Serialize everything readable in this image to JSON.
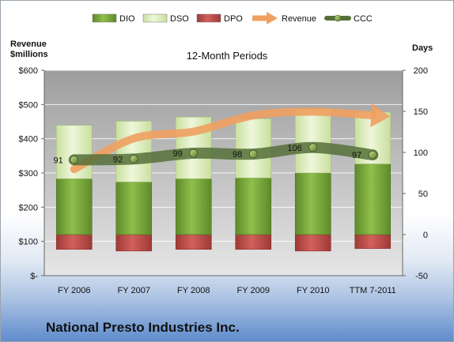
{
  "chart_data": {
    "type": "bar",
    "title": "12-Month Periods",
    "left_axis_label": [
      "Revenue",
      "$millions"
    ],
    "right_axis_label": "Days",
    "left_ticks": [
      "$-",
      "$100",
      "$200",
      "$300",
      "$400",
      "$500",
      "$600"
    ],
    "right_ticks": [
      "-50",
      "0",
      "50",
      "100",
      "150",
      "200"
    ],
    "ylim_left": [
      0,
      600
    ],
    "ylim_right": [
      -50,
      200
    ],
    "grid": true,
    "legend_position": "top",
    "categories": [
      "FY 2006",
      "FY 2007",
      "FY 2008",
      "FY 2009",
      "FY 2010",
      "TTM 7-2011"
    ],
    "series": [
      {
        "name": "DIO",
        "type": "stacked-bar",
        "axis": "right",
        "color": "#77a33a",
        "values": [
          68,
          64,
          68,
          69,
          75,
          86
        ]
      },
      {
        "name": "DSO",
        "type": "stacked-bar",
        "axis": "right",
        "color": "#d8eab4",
        "values": [
          65,
          74,
          75,
          72,
          78,
          63
        ]
      },
      {
        "name": "DPO",
        "type": "bar-below-zero",
        "axis": "right",
        "color": "#c0504d",
        "values": [
          -18,
          -20,
          -18,
          -18,
          -20,
          -17
        ]
      },
      {
        "name": "Revenue",
        "type": "line-arrow",
        "axis": "left",
        "color": "#f0a060",
        "values": [
          311,
          401,
          421,
          468,
          479,
          468
        ]
      },
      {
        "name": "CCC",
        "type": "line-marker",
        "axis": "right",
        "color": "#56703a",
        "values": [
          91,
          92,
          99,
          98,
          106,
          97
        ]
      }
    ],
    "ccc_labels": [
      "91",
      "92",
      "99",
      "98",
      "106",
      "97"
    ]
  },
  "company": "National Presto Industries Inc."
}
